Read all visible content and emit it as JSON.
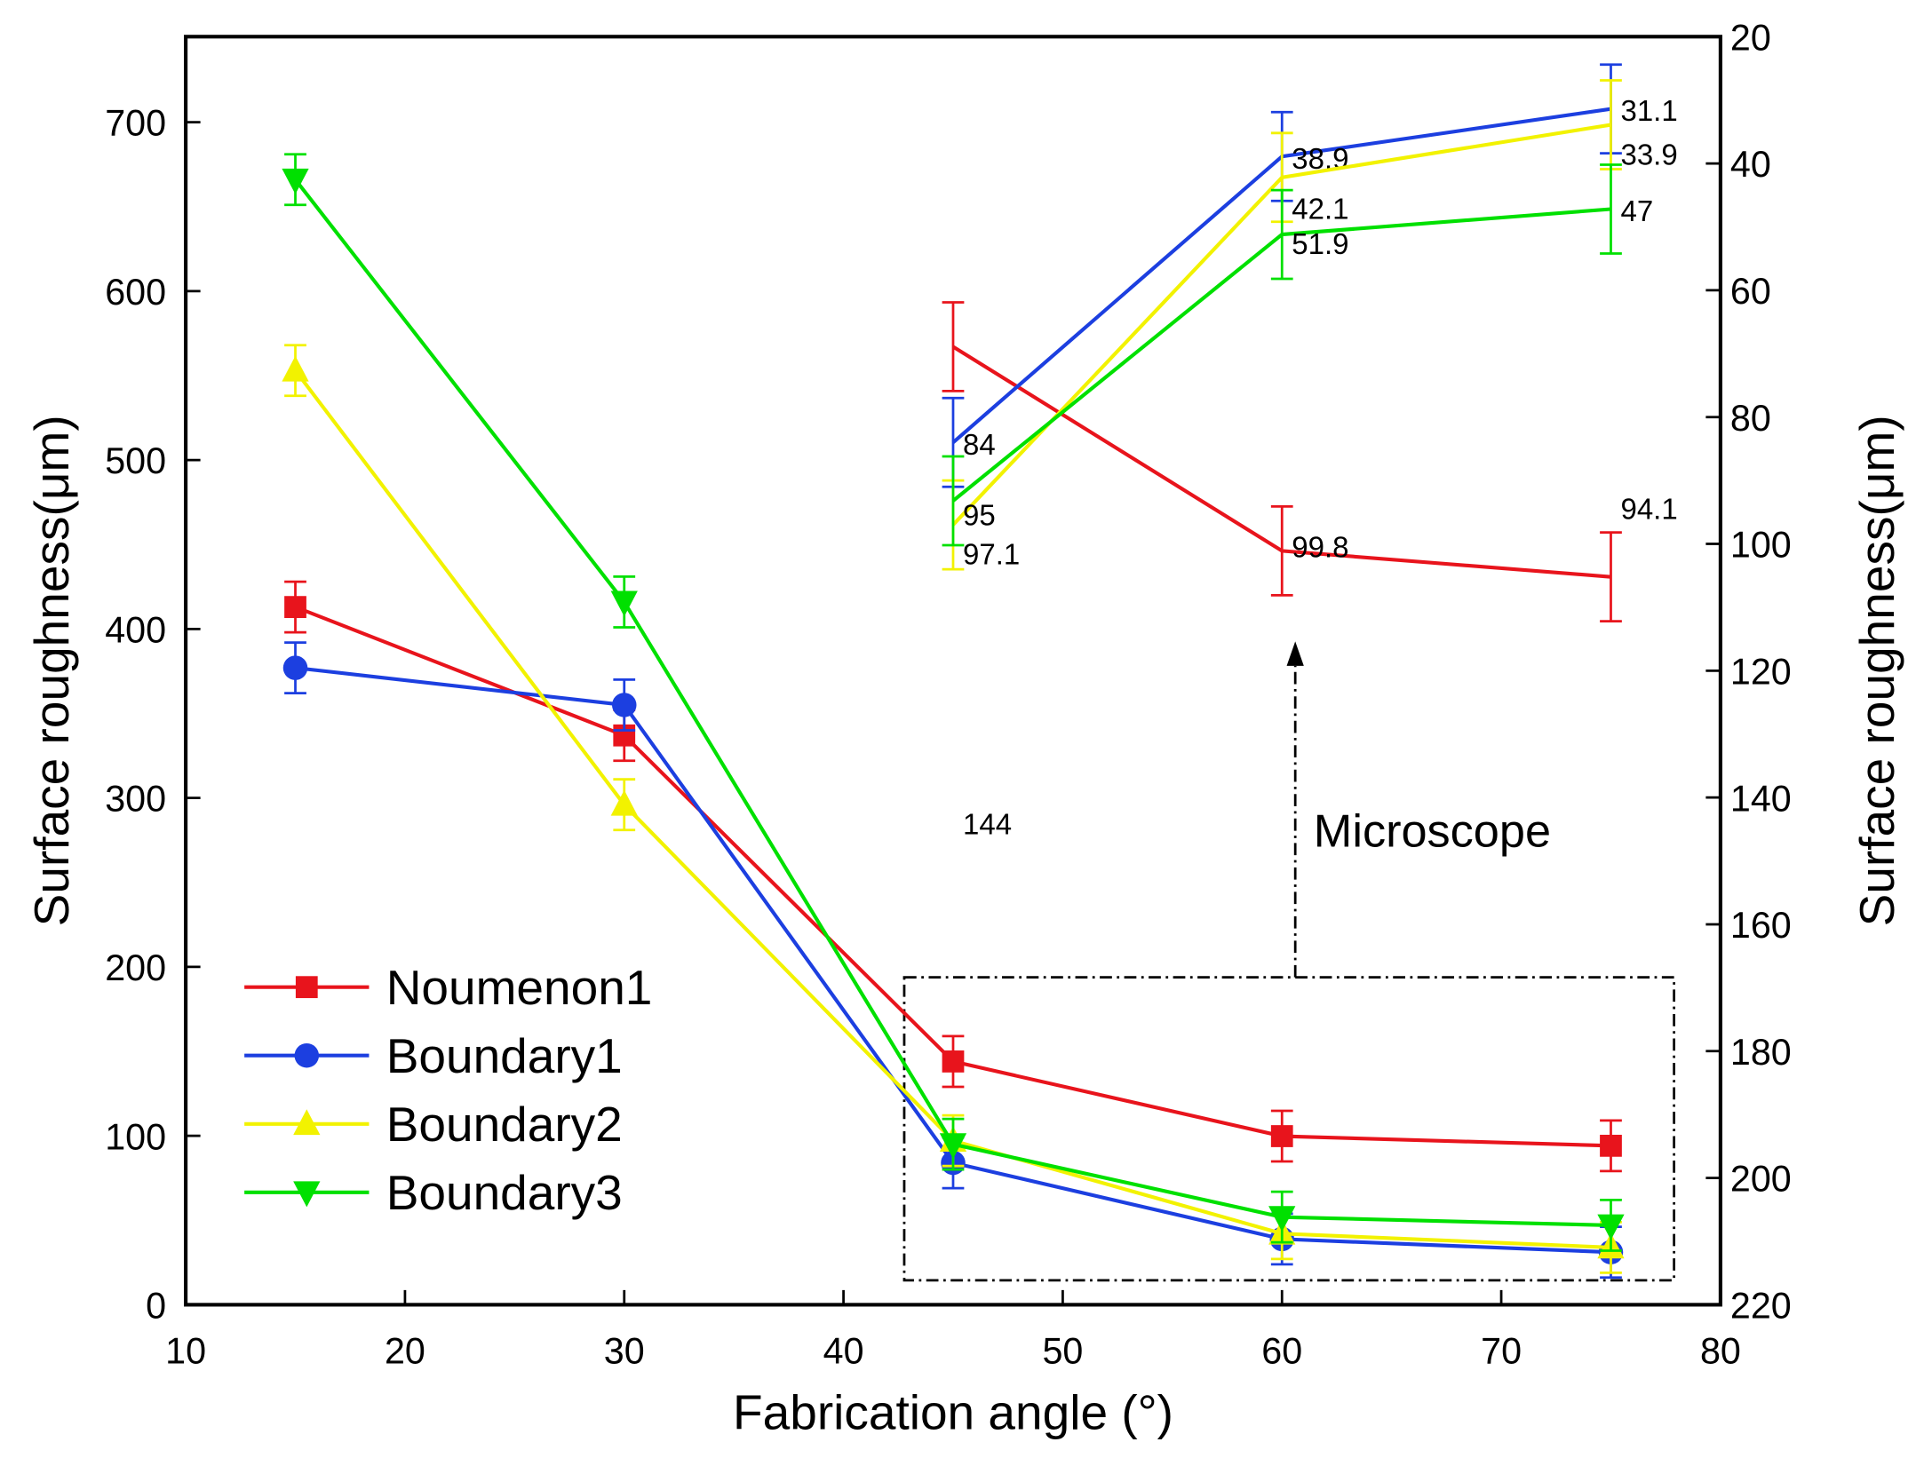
{
  "chart_data": {
    "type": "line",
    "xlabel": "Fabrication angle (°)",
    "ylabel": "Surface roughness(μm)",
    "ylabel_right": "Surface roughness(μm)",
    "xlim": [
      10,
      80
    ],
    "ylim": [
      0,
      750
    ],
    "ylim_right": [
      20,
      220
    ],
    "right_axis_inverted": true,
    "x_ticks": [
      10,
      20,
      30,
      40,
      50,
      60,
      70,
      80
    ],
    "y_ticks": [
      0,
      100,
      200,
      300,
      400,
      500,
      600,
      700
    ],
    "y_ticks_right": [
      20,
      40,
      60,
      80,
      100,
      120,
      140,
      160,
      180,
      200,
      220
    ],
    "x": [
      15,
      30,
      45,
      60,
      75
    ],
    "legend_position": "bottom-left",
    "grid": false,
    "series": [
      {
        "name": "Noumenon1",
        "color": "#e8141c",
        "marker": "square",
        "values": [
          413,
          337,
          144,
          99.8,
          94.1
        ],
        "error": [
          15,
          15,
          15,
          15,
          15
        ]
      },
      {
        "name": "Boundary1",
        "color": "#1c3fe0",
        "marker": "circle",
        "values": [
          377,
          355,
          84,
          38.9,
          31.1
        ],
        "error": [
          15,
          15,
          15,
          15,
          15
        ]
      },
      {
        "name": "Boundary2",
        "color": "#f2f200",
        "marker": "triangle-up",
        "values": [
          553,
          296,
          97.1,
          42.1,
          33.9
        ],
        "error": [
          15,
          15,
          15,
          15,
          15
        ]
      },
      {
        "name": "Boundary3",
        "color": "#00e000",
        "marker": "triangle-down",
        "values": [
          666,
          416,
          95,
          51.9,
          47
        ],
        "error": [
          15,
          15,
          15,
          15,
          15
        ]
      }
    ],
    "inset": {
      "annotation": "Microscope",
      "x": [
        45,
        60,
        75
      ],
      "series": [
        {
          "name": "Noumenon1",
          "plotted_right_axis": [
            68.9,
            101.1,
            105.2
          ],
          "labels": [
            "144",
            "99.8",
            "94.1"
          ],
          "label_values": [
            144,
            99.8,
            94.1
          ],
          "error": [
            7,
            7,
            7
          ]
        },
        {
          "name": "Boundary1",
          "plotted_right_axis": [
            84,
            38.9,
            31.4
          ],
          "labels": [
            "84",
            "38.9",
            "31.1"
          ],
          "label_values": [
            84,
            38.9,
            31.1
          ],
          "error": [
            7,
            7,
            7
          ]
        },
        {
          "name": "Boundary2",
          "plotted_right_axis": [
            97,
            42.2,
            33.9
          ],
          "labels": [
            "97.1",
            "42.1",
            "33.9"
          ],
          "label_values": [
            97.1,
            42.1,
            33.9
          ],
          "error": [
            7,
            7,
            7
          ]
        },
        {
          "name": "Boundary3",
          "plotted_right_axis": [
            93.2,
            51.2,
            47.2
          ],
          "labels": [
            "95",
            "51.9",
            "47"
          ],
          "label_values": [
            95,
            51.9,
            47
          ],
          "error": [
            7,
            7,
            7
          ]
        }
      ]
    }
  }
}
